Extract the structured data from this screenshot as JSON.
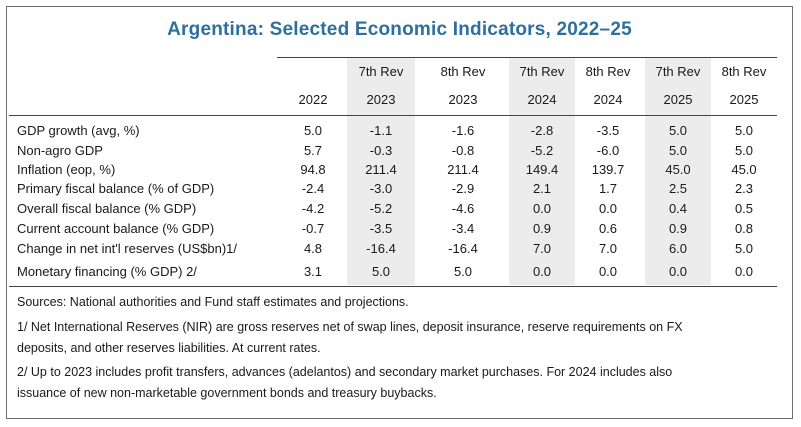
{
  "title": "Argentina: Selected Economic Indicators, 2022–25",
  "header": {
    "rev_row": [
      "",
      "7th Rev",
      "8th Rev",
      "7th Rev",
      "8th Rev",
      "7th Rev",
      "8th Rev"
    ],
    "year_row": [
      "2022",
      "2023",
      "2023",
      "2024",
      "2024",
      "2025",
      "2025"
    ]
  },
  "rows": [
    {
      "label": "GDP growth (avg, %)",
      "values": [
        "5.0",
        "-1.1",
        "-1.6",
        "-2.8",
        "-3.5",
        "5.0",
        "5.0"
      ]
    },
    {
      "label": "Non-agro GDP",
      "values": [
        "5.7",
        "-0.3",
        "-0.8",
        "-5.2",
        "-6.0",
        "5.0",
        "5.0"
      ]
    },
    {
      "label": "Inflation (eop, %)",
      "values": [
        "94.8",
        "211.4",
        "211.4",
        "149.4",
        "139.7",
        "45.0",
        "45.0"
      ]
    },
    {
      "label": "Primary fiscal balance (% of GDP)",
      "values": [
        "-2.4",
        "-3.0",
        "-2.9",
        "2.1",
        "1.7",
        "2.5",
        "2.3"
      ]
    },
    {
      "label": "Overall fiscal balance (% GDP)",
      "values": [
        "-4.2",
        "-5.2",
        "-4.6",
        "0.0",
        "0.0",
        "0.4",
        "0.5"
      ]
    },
    {
      "label": "Current account balance (% GDP)",
      "values": [
        "-0.7",
        "-3.5",
        "-3.4",
        "0.9",
        "0.6",
        "0.9",
        "0.8"
      ]
    },
    {
      "label": "Change in net int'l reserves (US$bn)1/",
      "values": [
        "4.8",
        "-16.4",
        "-16.4",
        "7.0",
        "7.0",
        "6.0",
        "5.0"
      ]
    },
    {
      "label": "Monetary financing (% GDP) 2/",
      "values": [
        "3.1",
        "5.0",
        "5.0",
        "0.0",
        "0.0",
        "0.0",
        "0.0"
      ]
    }
  ],
  "notes": [
    "Sources: National authorities and Fund staff estimates and projections.",
    "1/ Net International Reserves (NIR) are gross reserves net of swap lines, deposit insurance, reserve requirements on FX",
    "deposits, and other reserves liabilities. At current rates.",
    "2/ Up to 2023 includes profit transfers, advances (adelantos) and secondary market purchases. For 2024 includes also",
    "issuance of new non-marketable government bonds and treasury buybacks."
  ]
}
